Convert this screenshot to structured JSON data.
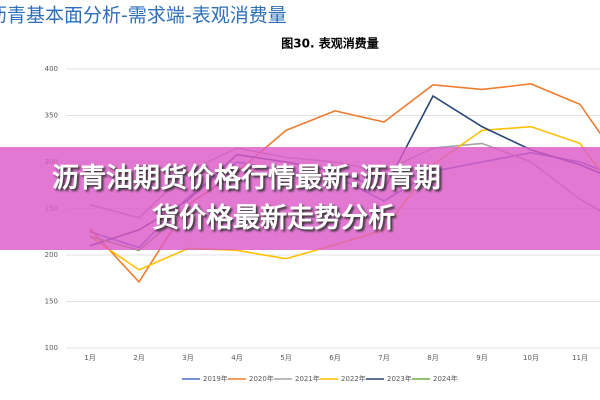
{
  "header": "沥青基本面分析-需求端-表观消费量",
  "banner": [
    "沥青油期货价格行情最新:沥青期",
    "货价格最新走势分析"
  ],
  "chart_data": {
    "type": "line",
    "title": "图30. 表观消费量",
    "categories": [
      "1月",
      "2月",
      "3月",
      "4月",
      "5月",
      "6月",
      "7月",
      "8月",
      "9月",
      "10月",
      "11月",
      null
    ],
    "ylim": [
      100,
      400
    ],
    "yticks": [
      100,
      150,
      200,
      250,
      300,
      350,
      400
    ],
    "grid": true,
    "legend": "bottom",
    "series": [
      {
        "name": "2019年",
        "color": "#4472c4",
        "values": [
          225,
          208,
          262,
          300,
          290,
          285,
          258,
          290,
          300,
          310,
          300,
          280
        ]
      },
      {
        "name": "2020年",
        "color": "#ed7d31",
        "values": [
          228,
          171,
          254,
          289,
          334,
          355,
          343,
          383,
          378,
          384,
          362,
          286
        ]
      },
      {
        "name": "2021年",
        "color": "#a5a5a5",
        "values": [
          254,
          240,
          290,
          315,
          305,
          300,
          290,
          315,
          320,
          300,
          260,
          230
        ]
      },
      {
        "name": "2022年",
        "color": "#ffc000",
        "values": [
          220,
          184,
          207,
          205,
          196,
          211,
          227,
          297,
          334,
          338,
          320,
          248
        ]
      },
      {
        "name": "2023年",
        "color": "#264478",
        "values": [
          210,
          227,
          259,
          308,
          300,
          290,
          270,
          371,
          338,
          313,
          297,
          275
        ]
      },
      {
        "name": "2024年",
        "color": "#70ad47",
        "values": [
          220,
          205,
          250,
          null,
          null,
          null,
          null,
          null,
          null,
          null,
          null,
          null
        ]
      }
    ]
  }
}
